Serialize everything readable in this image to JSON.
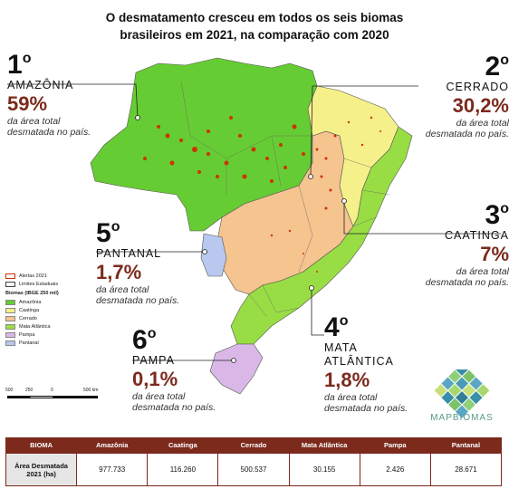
{
  "title": {
    "line1": "O desmatamento cresceu em todos os seis biomas",
    "line2": "brasileiros em 2021, na comparação com 2020"
  },
  "biomes": [
    {
      "key": "amazonia",
      "rank": "1",
      "rank_suffix": "o",
      "name": "AMAZÔNIA",
      "pct": "59%",
      "desc1": "da área total",
      "desc2": "desmatada no país."
    },
    {
      "key": "cerrado",
      "rank": "2",
      "rank_suffix": "o",
      "name": "CERRADO",
      "pct": "30,2%",
      "desc1": "da área total",
      "desc2": "desmatada no país."
    },
    {
      "key": "caatinga",
      "rank": "3",
      "rank_suffix": "o",
      "name": "CAATINGA",
      "pct": "7%",
      "desc1": "da área total",
      "desc2": "desmatada no país."
    },
    {
      "key": "mata",
      "rank": "4",
      "rank_suffix": "o",
      "name": "MATA",
      "name2": "ATLÂNTICA",
      "pct": "1,8%",
      "desc1": "da área total",
      "desc2": "desmatada no país."
    },
    {
      "key": "pantanal",
      "rank": "5",
      "rank_suffix": "o",
      "name": "PANTANAL",
      "pct": "1,7%",
      "desc1": "da área total",
      "desc2": "desmatada no país."
    },
    {
      "key": "pampa",
      "rank": "6",
      "rank_suffix": "o",
      "name": "PAMPA",
      "pct": "0,1%",
      "desc1": "da área total",
      "desc2": "desmatada no país."
    }
  ],
  "legend": {
    "alerts": "Alertas 2021",
    "limits": "Limites Estaduais",
    "biomes_title": "Biomas (IBGE 250 mil)",
    "items": [
      {
        "label": "Amazônia",
        "color": "#66cc33"
      },
      {
        "label": "Caatinga",
        "color": "#f5f08a"
      },
      {
        "label": "Cerrado",
        "color": "#f5c48f"
      },
      {
        "label": "Mata Atlântica",
        "color": "#99dd44"
      },
      {
        "label": "Pampa",
        "color": "#d9b8e8"
      },
      {
        "label": "Pantanal",
        "color": "#b8c8ee"
      }
    ]
  },
  "scale": {
    "t0": "500",
    "t1": "250",
    "t2": "0",
    "t3": "500 km"
  },
  "logo": {
    "text": "MAPBIOMAS"
  },
  "table": {
    "header": [
      "BIOMA",
      "Amazônia",
      "Caatinga",
      "Cerrado",
      "Mata Atlântica",
      "Pampa",
      "Pantanal"
    ],
    "row_label": "Área Desmatada 2021 (ha)",
    "values": [
      "977.733",
      "116.260",
      "500.537",
      "30.155",
      "2.426",
      "28.671"
    ]
  },
  "colors": {
    "accent": "#7b2a1c",
    "amazonia": "#66cc33",
    "cerrado": "#f5c48f",
    "caatinga": "#f5f08a",
    "mata": "#99dd44",
    "pampa": "#d9b8e8",
    "pantanal": "#b8c8ee",
    "alert": "#cc3300"
  }
}
